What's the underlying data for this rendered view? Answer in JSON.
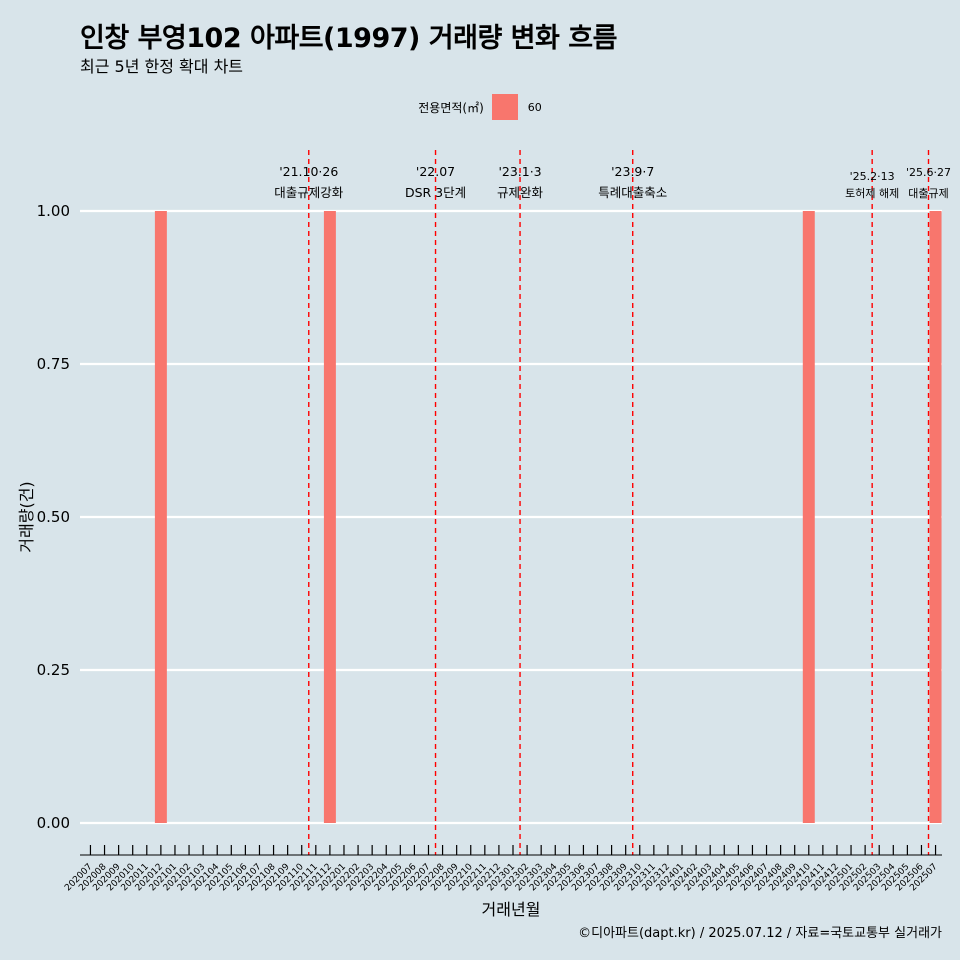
{
  "title": "인창 부영102 아파트(1997) 거래량 변화 흐름",
  "subtitle": "최근 5년 한정 확대 차트",
  "caption": "©디아파트(dapt.kr) / 2025.07.12 / 자료=국토교통부 실거래가",
  "legend": {
    "title": "전용면적(㎡)",
    "label": "60",
    "color": "#f8766d"
  },
  "chart_data": {
    "type": "bar",
    "title": "인창 부영102 아파트(1997) 거래량 변화 흐름",
    "subtitle": "최근 5년 한정 확대 차트",
    "xlabel": "거래년월",
    "ylabel": "거래량(건)",
    "ylim": [
      0,
      1
    ],
    "yticks": [
      0,
      0.25,
      0.5,
      0.75,
      1
    ],
    "ytick_labels": [
      "0.00",
      "0.25",
      "0.50",
      "0.75",
      "1.00"
    ],
    "categories": [
      "202007",
      "202008",
      "202009",
      "202010",
      "202011",
      "202012",
      "202101",
      "202102",
      "202103",
      "202104",
      "202105",
      "202106",
      "202107",
      "202108",
      "202109",
      "202110",
      "202111",
      "202112",
      "202201",
      "202202",
      "202203",
      "202204",
      "202205",
      "202206",
      "202207",
      "202208",
      "202209",
      "202210",
      "202211",
      "202212",
      "202301",
      "202302",
      "202303",
      "202304",
      "202305",
      "202306",
      "202307",
      "202308",
      "202309",
      "202310",
      "202311",
      "202312",
      "202401",
      "202402",
      "202403",
      "202404",
      "202405",
      "202406",
      "202407",
      "202408",
      "202409",
      "202410",
      "202411",
      "202412",
      "202501",
      "202502",
      "202503",
      "202504",
      "202505",
      "202506",
      "202507"
    ],
    "series": [
      {
        "name": "60",
        "color": "#f8766d",
        "values": [
          0,
          0,
          0,
          0,
          0,
          1,
          0,
          0,
          0,
          0,
          0,
          0,
          0,
          0,
          0,
          0,
          0,
          1,
          0,
          0,
          0,
          0,
          0,
          0,
          0,
          0,
          0,
          0,
          0,
          0,
          0,
          0,
          0,
          0,
          0,
          0,
          0,
          0,
          0,
          0,
          0,
          0,
          0,
          0,
          0,
          0,
          0,
          0,
          0,
          0,
          0,
          1,
          0,
          0,
          0,
          0,
          0,
          0,
          0,
          0,
          1
        ]
      }
    ],
    "grid": true,
    "legend_position": "top",
    "annotations": [
      {
        "x": "202110",
        "line1": "'21.10·26",
        "line2": "대출규제강화"
      },
      {
        "x": "202207",
        "line1": "'22.07",
        "line2": "DSR 3단계"
      },
      {
        "x": "202301",
        "line1": "'23.1·3",
        "line2": "규제완화"
      },
      {
        "x": "202309",
        "line1": "'23.9·7",
        "line2": "특례대출축소"
      },
      {
        "x": "202502",
        "line1": "'25.2·13",
        "line2": "토허제 해제"
      },
      {
        "x": "202506",
        "line1": "'25.6·27",
        "line2": "대출규제"
      }
    ]
  }
}
